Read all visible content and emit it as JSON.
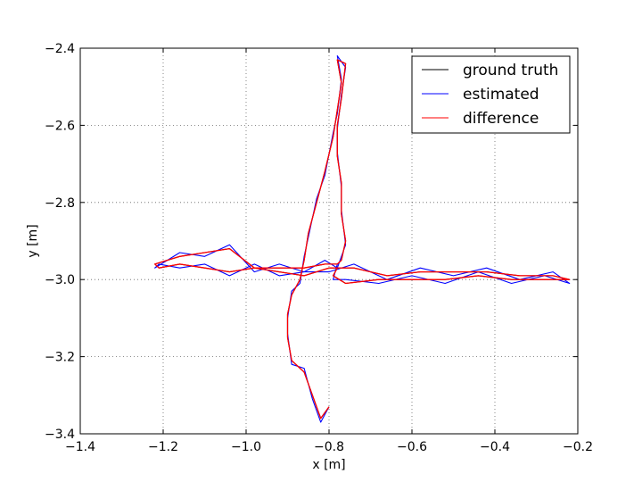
{
  "chart_data": {
    "type": "line",
    "title": "",
    "xlabel": "x [m]",
    "ylabel": "y [m]",
    "xlim": [
      -1.4,
      -0.2
    ],
    "ylim": [
      -3.4,
      -2.4
    ],
    "xticks": [
      -1.4,
      -1.2,
      -1.0,
      -0.8,
      -0.6,
      -0.4,
      -0.2
    ],
    "yticks": [
      -3.4,
      -3.2,
      -3.0,
      -2.8,
      -2.6,
      -2.4
    ],
    "xtick_labels": [
      "−1.4",
      "−1.2",
      "−1.0",
      "−0.8",
      "−0.6",
      "−0.4",
      "−0.2"
    ],
    "ytick_labels": [
      "−3.4",
      "−3.2",
      "−3.0",
      "−2.8",
      "−2.6",
      "−2.4"
    ],
    "grid": true,
    "legend_position": "top-right",
    "series": [
      {
        "name": "ground truth",
        "color": "#000000",
        "points": [
          [
            -0.8,
            -3.33
          ],
          [
            -0.82,
            -3.36
          ],
          [
            -0.84,
            -3.3
          ],
          [
            -0.86,
            -3.24
          ],
          [
            -0.89,
            -3.21
          ],
          [
            -0.9,
            -3.15
          ],
          [
            -0.9,
            -3.09
          ],
          [
            -0.89,
            -3.04
          ],
          [
            -0.87,
            -3.0
          ],
          [
            -0.86,
            -2.95
          ],
          [
            -0.85,
            -2.88
          ],
          [
            -0.83,
            -2.8
          ],
          [
            -0.81,
            -2.72
          ],
          [
            -0.79,
            -2.63
          ],
          [
            -0.78,
            -2.56
          ],
          [
            -0.77,
            -2.49
          ],
          [
            -0.78,
            -2.43
          ],
          [
            -0.76,
            -2.44
          ],
          [
            -0.77,
            -2.53
          ],
          [
            -0.78,
            -2.6
          ],
          [
            -0.78,
            -2.68
          ],
          [
            -0.77,
            -2.75
          ],
          [
            -0.77,
            -2.83
          ],
          [
            -0.76,
            -2.9
          ],
          [
            -0.77,
            -2.95
          ],
          [
            -0.78,
            -2.96
          ],
          [
            -0.81,
            -2.96
          ],
          [
            -0.86,
            -2.97
          ],
          [
            -0.92,
            -2.97
          ],
          [
            -0.98,
            -2.97
          ],
          [
            -1.04,
            -2.92
          ],
          [
            -1.1,
            -2.93
          ],
          [
            -1.16,
            -2.94
          ],
          [
            -1.22,
            -2.96
          ],
          [
            -1.21,
            -2.97
          ],
          [
            -1.16,
            -2.96
          ],
          [
            -1.1,
            -2.97
          ],
          [
            -1.04,
            -2.98
          ],
          [
            -0.98,
            -2.97
          ],
          [
            -0.92,
            -2.98
          ],
          [
            -0.86,
            -2.99
          ],
          [
            -0.8,
            -2.97
          ],
          [
            -0.74,
            -2.97
          ],
          [
            -0.66,
            -2.99
          ],
          [
            -0.58,
            -2.98
          ],
          [
            -0.5,
            -2.98
          ],
          [
            -0.42,
            -2.98
          ],
          [
            -0.34,
            -2.99
          ],
          [
            -0.26,
            -2.99
          ],
          [
            -0.22,
            -3.0
          ],
          [
            -0.28,
            -3.0
          ],
          [
            -0.36,
            -3.0
          ],
          [
            -0.44,
            -2.99
          ],
          [
            -0.52,
            -3.0
          ],
          [
            -0.6,
            -3.0
          ],
          [
            -0.68,
            -3.0
          ],
          [
            -0.76,
            -3.01
          ],
          [
            -0.79,
            -2.99
          ],
          [
            -0.78,
            -2.97
          ]
        ]
      },
      {
        "name": "estimated",
        "color": "#0000ff",
        "points": [
          [
            -0.8,
            -3.33
          ],
          [
            -0.82,
            -3.37
          ],
          [
            -0.84,
            -3.31
          ],
          [
            -0.86,
            -3.23
          ],
          [
            -0.89,
            -3.22
          ],
          [
            -0.9,
            -3.14
          ],
          [
            -0.9,
            -3.1
          ],
          [
            -0.89,
            -3.03
          ],
          [
            -0.87,
            -3.01
          ],
          [
            -0.86,
            -2.94
          ],
          [
            -0.85,
            -2.89
          ],
          [
            -0.83,
            -2.79
          ],
          [
            -0.81,
            -2.73
          ],
          [
            -0.79,
            -2.62
          ],
          [
            -0.78,
            -2.57
          ],
          [
            -0.77,
            -2.48
          ],
          [
            -0.78,
            -2.42
          ],
          [
            -0.76,
            -2.45
          ],
          [
            -0.77,
            -2.52
          ],
          [
            -0.78,
            -2.61
          ],
          [
            -0.78,
            -2.67
          ],
          [
            -0.77,
            -2.76
          ],
          [
            -0.77,
            -2.82
          ],
          [
            -0.76,
            -2.91
          ],
          [
            -0.77,
            -2.94
          ],
          [
            -0.78,
            -2.97
          ],
          [
            -0.81,
            -2.95
          ],
          [
            -0.86,
            -2.98
          ],
          [
            -0.92,
            -2.96
          ],
          [
            -0.98,
            -2.98
          ],
          [
            -1.04,
            -2.91
          ],
          [
            -1.1,
            -2.94
          ],
          [
            -1.16,
            -2.93
          ],
          [
            -1.22,
            -2.97
          ],
          [
            -1.21,
            -2.96
          ],
          [
            -1.16,
            -2.97
          ],
          [
            -1.1,
            -2.96
          ],
          [
            -1.04,
            -2.99
          ],
          [
            -0.98,
            -2.96
          ],
          [
            -0.92,
            -2.99
          ],
          [
            -0.86,
            -2.98
          ],
          [
            -0.8,
            -2.98
          ],
          [
            -0.74,
            -2.96
          ],
          [
            -0.66,
            -3.0
          ],
          [
            -0.58,
            -2.97
          ],
          [
            -0.5,
            -2.99
          ],
          [
            -0.42,
            -2.97
          ],
          [
            -0.34,
            -3.0
          ],
          [
            -0.26,
            -2.98
          ],
          [
            -0.22,
            -3.01
          ],
          [
            -0.28,
            -2.99
          ],
          [
            -0.36,
            -3.01
          ],
          [
            -0.44,
            -2.98
          ],
          [
            -0.52,
            -3.01
          ],
          [
            -0.6,
            -2.99
          ],
          [
            -0.68,
            -3.01
          ],
          [
            -0.76,
            -3.0
          ],
          [
            -0.79,
            -3.0
          ],
          [
            -0.78,
            -2.96
          ]
        ]
      },
      {
        "name": "difference",
        "color": "#ff0000",
        "points": [
          [
            -0.8,
            -3.33
          ],
          [
            -0.82,
            -3.36
          ],
          [
            -0.84,
            -3.3
          ],
          [
            -0.86,
            -3.24
          ],
          [
            -0.89,
            -3.21
          ],
          [
            -0.9,
            -3.15
          ],
          [
            -0.9,
            -3.09
          ],
          [
            -0.89,
            -3.04
          ],
          [
            -0.87,
            -3.0
          ],
          [
            -0.86,
            -2.95
          ],
          [
            -0.85,
            -2.88
          ],
          [
            -0.83,
            -2.8
          ],
          [
            -0.81,
            -2.72
          ],
          [
            -0.79,
            -2.63
          ],
          [
            -0.78,
            -2.56
          ],
          [
            -0.77,
            -2.49
          ],
          [
            -0.78,
            -2.43
          ],
          [
            -0.76,
            -2.44
          ],
          [
            -0.77,
            -2.53
          ],
          [
            -0.78,
            -2.6
          ],
          [
            -0.78,
            -2.68
          ],
          [
            -0.77,
            -2.75
          ],
          [
            -0.77,
            -2.83
          ],
          [
            -0.76,
            -2.9
          ],
          [
            -0.77,
            -2.95
          ],
          [
            -0.78,
            -2.96
          ],
          [
            -0.81,
            -2.96
          ],
          [
            -0.86,
            -2.97
          ],
          [
            -0.92,
            -2.97
          ],
          [
            -0.98,
            -2.97
          ],
          [
            -1.04,
            -2.92
          ],
          [
            -1.1,
            -2.93
          ],
          [
            -1.16,
            -2.94
          ],
          [
            -1.22,
            -2.96
          ],
          [
            -1.21,
            -2.97
          ],
          [
            -1.16,
            -2.96
          ],
          [
            -1.1,
            -2.97
          ],
          [
            -1.04,
            -2.98
          ],
          [
            -0.98,
            -2.97
          ],
          [
            -0.92,
            -2.98
          ],
          [
            -0.86,
            -2.99
          ],
          [
            -0.8,
            -2.97
          ],
          [
            -0.74,
            -2.97
          ],
          [
            -0.66,
            -2.99
          ],
          [
            -0.58,
            -2.98
          ],
          [
            -0.5,
            -2.98
          ],
          [
            -0.42,
            -2.98
          ],
          [
            -0.34,
            -2.99
          ],
          [
            -0.26,
            -2.99
          ],
          [
            -0.22,
            -3.0
          ],
          [
            -0.28,
            -3.0
          ],
          [
            -0.36,
            -3.0
          ],
          [
            -0.44,
            -2.99
          ],
          [
            -0.52,
            -3.0
          ],
          [
            -0.6,
            -3.0
          ],
          [
            -0.68,
            -3.0
          ],
          [
            -0.76,
            -3.01
          ],
          [
            -0.79,
            -2.99
          ],
          [
            -0.78,
            -2.97
          ]
        ]
      }
    ]
  }
}
